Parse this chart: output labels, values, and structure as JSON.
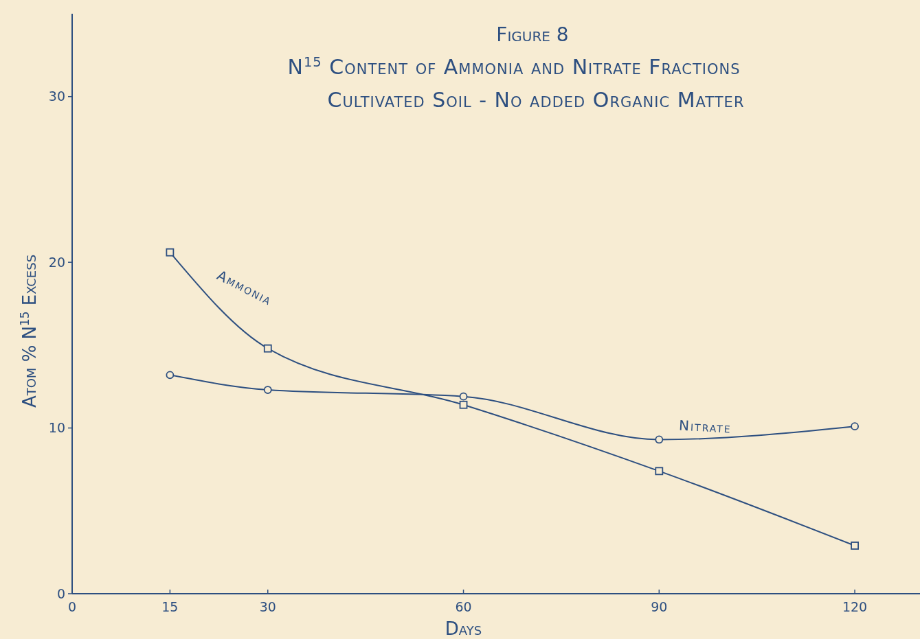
{
  "chart_data": {
    "type": "line",
    "title": "Figure 8",
    "subtitle": "N$^{15}$ Content of Ammonia and Nitrate Fractions\nCultivated Soil - No added Organic Matter",
    "xlabel": "Days",
    "ylabel": "Atom % N$^{15}$ Excess",
    "x": [
      15,
      30,
      60,
      90,
      120
    ],
    "series": [
      {
        "name": "Ammonia",
        "color": "#2d4f80",
        "marker": "square",
        "values": [
          20.6,
          14.8,
          11.4,
          7.4,
          2.9
        ]
      },
      {
        "name": "Nitrate",
        "color": "#2d4f80",
        "marker": "circle",
        "values": [
          13.2,
          12.3,
          11.9,
          9.3,
          10.1
        ]
      }
    ],
    "xlim": [
      0,
      130
    ],
    "xticks": [
      0,
      15,
      30,
      60,
      90,
      120
    ],
    "ylim": [
      0,
      35
    ],
    "yticks": [
      0,
      10,
      20,
      30
    ],
    "grid": false,
    "line_style": "solid"
  }
}
